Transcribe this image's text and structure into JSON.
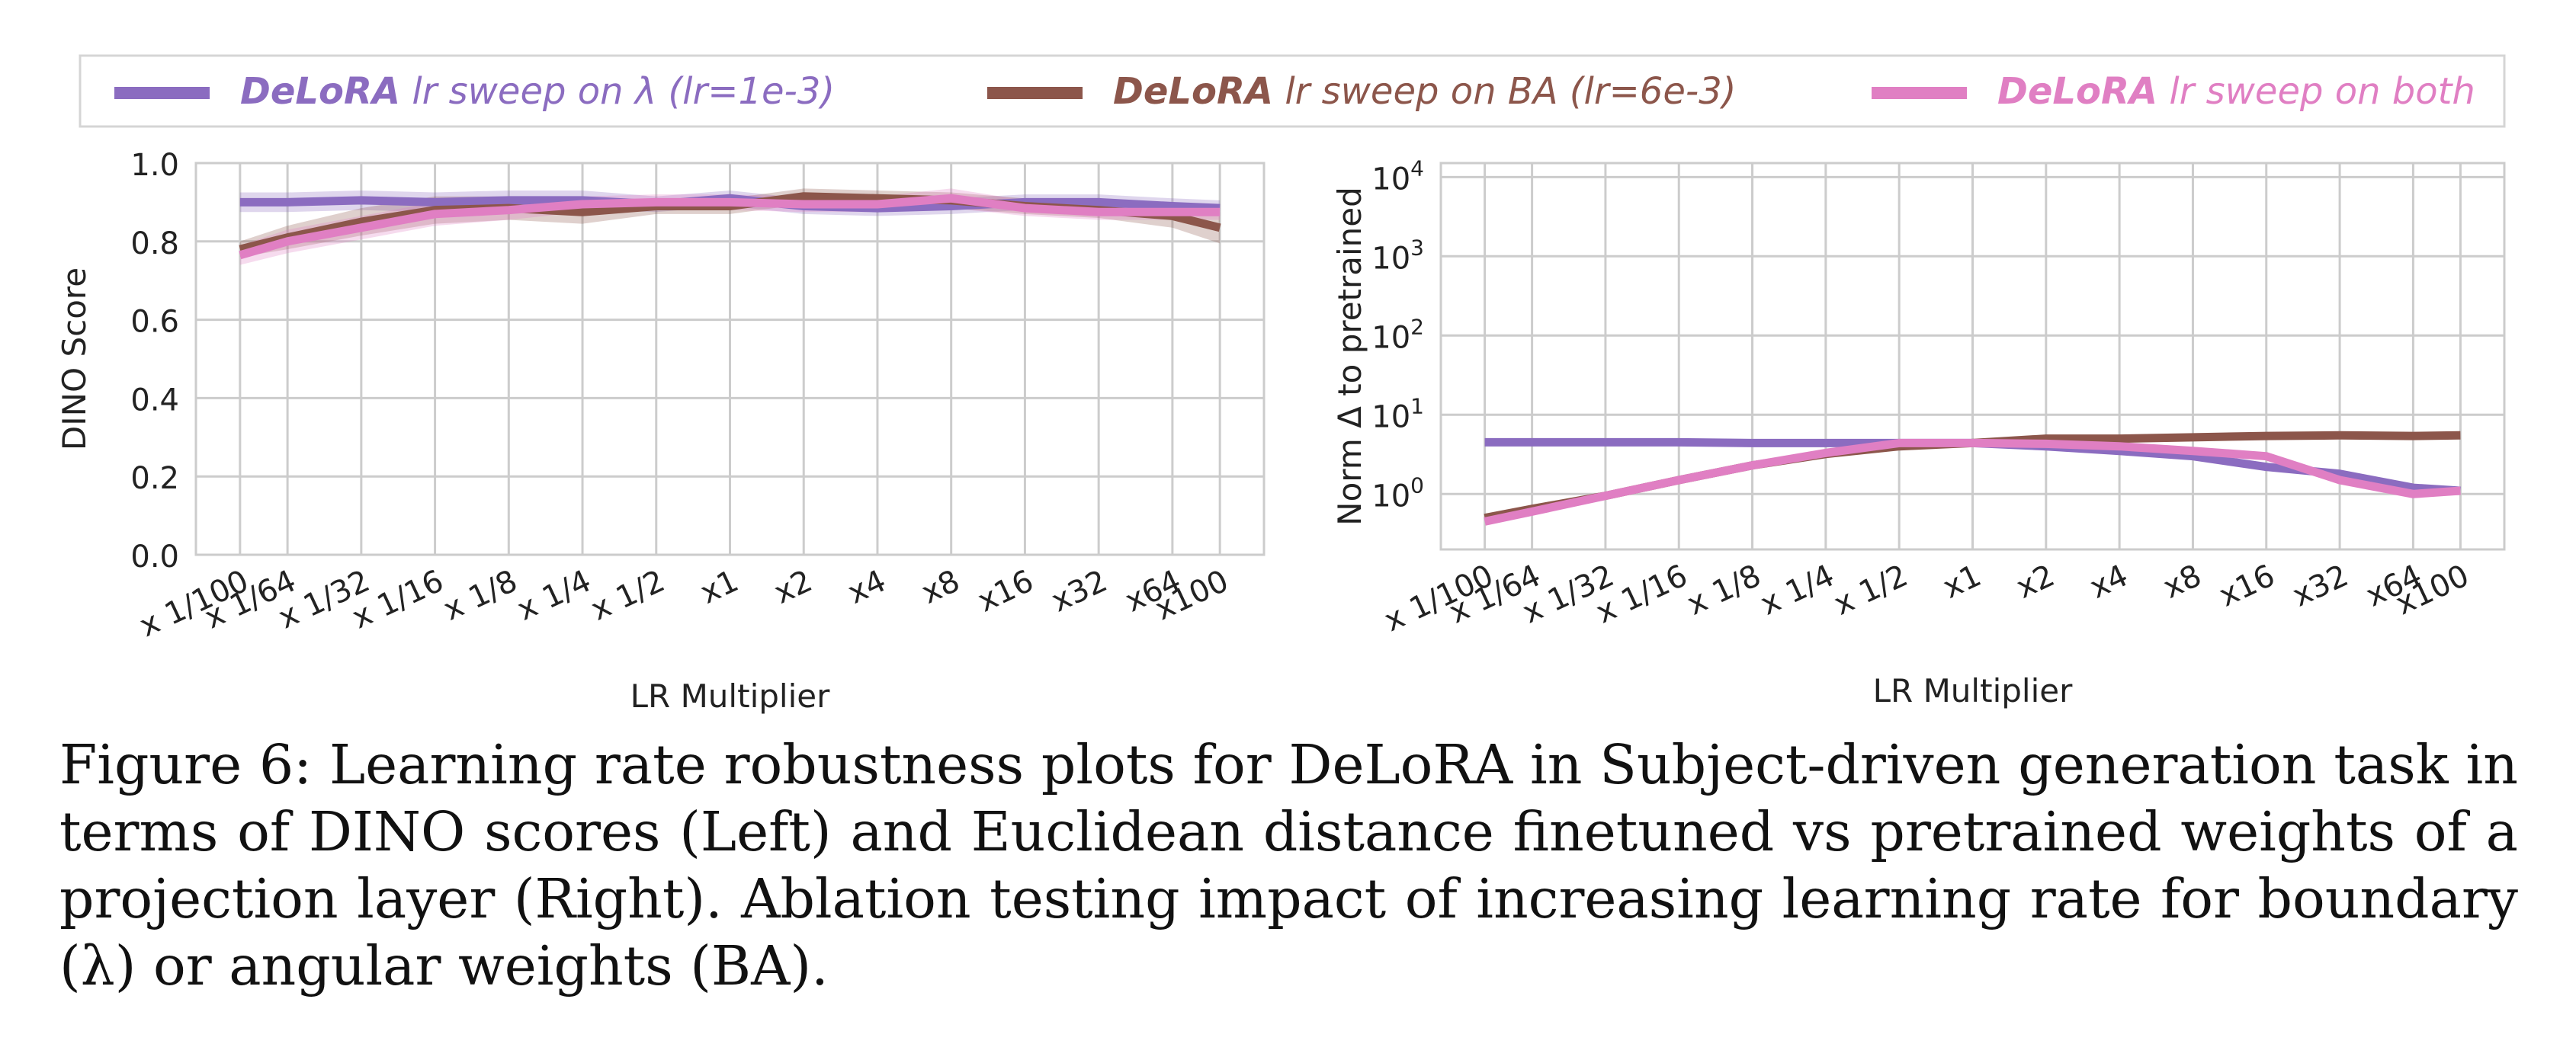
{
  "colors": {
    "purple": "#8b6cc0",
    "brown": "#8c564b",
    "pink": "#e07fc3",
    "grid": "#cccccc",
    "axis": "#cccccc"
  },
  "legend": {
    "entries": [
      {
        "brand": "DeLoRA",
        "rest": " lr sweep on λ (lr=1e-3)",
        "color": "#8b6cc0"
      },
      {
        "brand": "DeLoRA",
        "rest": " lr sweep on BA (lr=6e-3)",
        "color": "#8c564b"
      },
      {
        "brand": "DeLoRA",
        "rest": " lr sweep on both",
        "color": "#e07fc3"
      }
    ]
  },
  "chart_data": [
    {
      "type": "line",
      "xlabel": "LR Multiplier",
      "ylabel": "DINO Score",
      "ylim": [
        0.0,
        1.0
      ],
      "yticks": [
        "0.0",
        "0.2",
        "0.4",
        "0.6",
        "0.8",
        "1.0"
      ],
      "yscale": "linear",
      "grid": true,
      "x": [
        "x 1/100",
        "x 1/64",
        "x 1/32",
        "x 1/16",
        "x 1/8",
        "x 1/4",
        "x 1/2",
        "x1",
        "x2",
        "x4",
        "x8",
        "x16",
        "x32",
        "x64",
        "x100"
      ],
      "x_positions": [
        0.01,
        0.015625,
        0.03125,
        0.0625,
        0.125,
        0.25,
        0.5,
        1,
        2,
        4,
        8,
        16,
        32,
        64,
        100
      ],
      "series": [
        {
          "name": "DeLoRA lr sweep on λ (lr=1e-3)",
          "color": "#8b6cc0",
          "values": [
            0.9,
            0.9,
            0.905,
            0.9,
            0.905,
            0.905,
            0.895,
            0.91,
            0.89,
            0.885,
            0.89,
            0.9,
            0.9,
            0.89,
            0.885
          ],
          "band": [
            0.025,
            0.025,
            0.025,
            0.025,
            0.025,
            0.025,
            0.02,
            0.02,
            0.02,
            0.02,
            0.02,
            0.02,
            0.02,
            0.02,
            0.02
          ]
        },
        {
          "name": "DeLoRA lr sweep on BA (lr=6e-3)",
          "color": "#8c564b",
          "values": [
            0.78,
            0.81,
            0.85,
            0.88,
            0.885,
            0.875,
            0.89,
            0.89,
            0.915,
            0.91,
            0.905,
            0.89,
            0.88,
            0.865,
            0.835
          ],
          "band": [
            0.02,
            0.03,
            0.035,
            0.035,
            0.03,
            0.03,
            0.02,
            0.02,
            0.02,
            0.02,
            0.02,
            0.02,
            0.02,
            0.03,
            0.04
          ]
        },
        {
          "name": "DeLoRA lr sweep on both",
          "color": "#e07fc3",
          "values": [
            0.765,
            0.8,
            0.835,
            0.87,
            0.88,
            0.895,
            0.9,
            0.9,
            0.895,
            0.895,
            0.91,
            0.885,
            0.875,
            0.875,
            0.875
          ],
          "band": [
            0.025,
            0.03,
            0.03,
            0.03,
            0.025,
            0.02,
            0.02,
            0.02,
            0.02,
            0.02,
            0.025,
            0.02,
            0.02,
            0.02,
            0.02
          ]
        }
      ]
    },
    {
      "type": "line",
      "xlabel": "LR Multiplier",
      "ylabel": "Norm Δ to pretrained",
      "ylim": [
        0.2,
        15000
      ],
      "yscale": "log",
      "yticks": [
        {
          "base": "10",
          "exp": "0",
          "value": 1
        },
        {
          "base": "10",
          "exp": "1",
          "value": 10
        },
        {
          "base": "10",
          "exp": "2",
          "value": 100
        },
        {
          "base": "10",
          "exp": "3",
          "value": 1000
        },
        {
          "base": "10",
          "exp": "4",
          "value": 10000
        }
      ],
      "grid": true,
      "x": [
        "x 1/100",
        "x 1/64",
        "x 1/32",
        "x 1/16",
        "x 1/8",
        "x 1/4",
        "x 1/2",
        "x1",
        "x2",
        "x4",
        "x8",
        "x16",
        "x32",
        "x64",
        "x100"
      ],
      "x_positions": [
        0.01,
        0.015625,
        0.03125,
        0.0625,
        0.125,
        0.25,
        0.5,
        1,
        2,
        4,
        8,
        16,
        32,
        64,
        100
      ],
      "series": [
        {
          "name": "DeLoRA lr sweep on λ (lr=1e-3)",
          "color": "#8b6cc0",
          "values": [
            4.5,
            4.5,
            4.5,
            4.5,
            4.4,
            4.4,
            4.4,
            4.4,
            4.0,
            3.5,
            3.0,
            2.2,
            1.8,
            1.2,
            1.1
          ]
        },
        {
          "name": "DeLoRA lr sweep on BA (lr=6e-3)",
          "color": "#8c564b",
          "values": [
            0.5,
            0.65,
            0.95,
            1.5,
            2.3,
            3.2,
            4.0,
            4.4,
            5.0,
            5.0,
            5.2,
            5.4,
            5.5,
            5.4,
            5.5
          ]
        },
        {
          "name": "DeLoRA lr sweep on both",
          "color": "#e07fc3",
          "values": [
            0.45,
            0.6,
            0.95,
            1.5,
            2.3,
            3.3,
            4.4,
            4.4,
            4.3,
            4.0,
            3.5,
            3.0,
            1.5,
            1.0,
            1.1
          ]
        }
      ]
    }
  ],
  "caption": {
    "line1": "Figure 6: Learning rate robustness plots for DeLoRA in Subject-driven generation task in terms of",
    "line2": "DINO scores (Left) and Euclidean distance finetuned vs pretrained weights of a projection layer",
    "line3": "(Right).  Ablation testing impact of increasing learning rate for boundary (λ) or angular weights",
    "line4": "(BA)."
  }
}
